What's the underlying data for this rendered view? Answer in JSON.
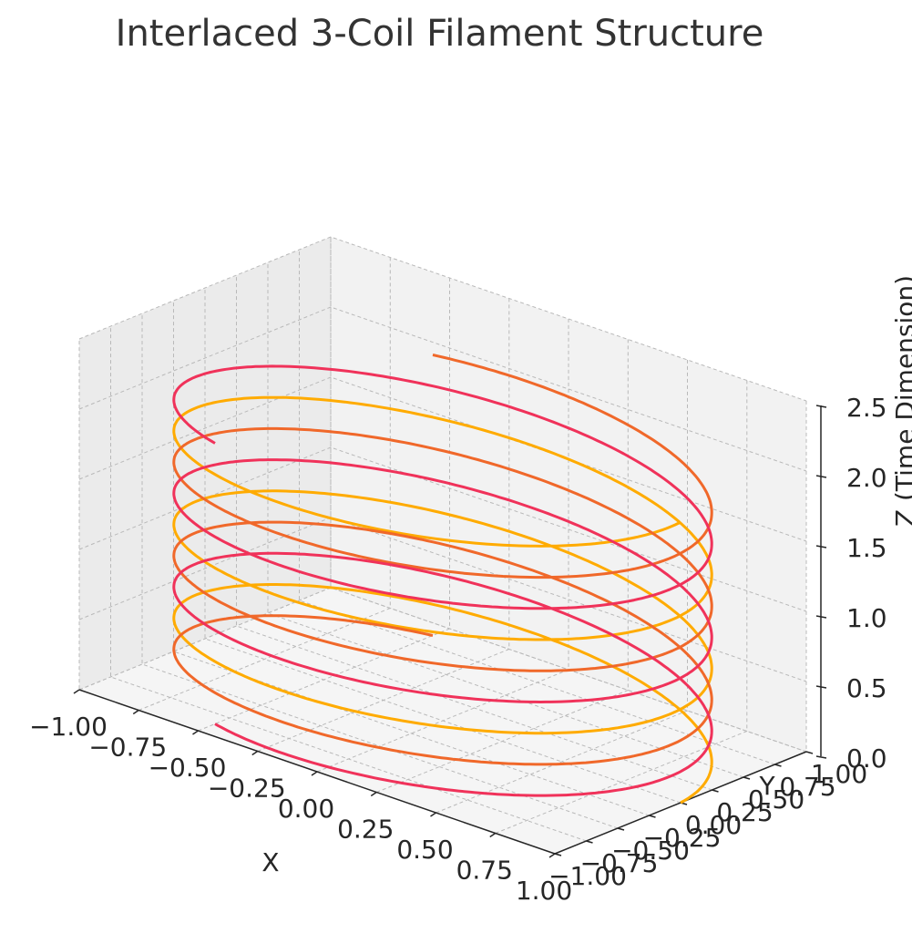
{
  "chart_data": {
    "type": "line",
    "title": "Interlaced 3-Coil Filament Structure",
    "xlabel": "X",
    "ylabel": "Y",
    "zlabel": "Z (Time Dimension)",
    "xlim": [
      -1.0,
      1.0
    ],
    "ylim": [
      -1.0,
      1.0
    ],
    "zlim": [
      0.0,
      2.5
    ],
    "grid": true,
    "x_ticks": [
      "−1.00",
      "−0.75",
      "−0.50",
      "−0.25",
      "0.00",
      "0.25",
      "0.50",
      "0.75",
      "1.00"
    ],
    "y_ticks": [
      "−1.00",
      "−0.75",
      "−0.50",
      "−0.25",
      "0.00",
      "0.25",
      "0.50",
      "0.75",
      "1.00"
    ],
    "z_ticks": [
      "0.0",
      "0.5",
      "1.0",
      "1.5",
      "2.0",
      "2.5"
    ],
    "x_tick_values": [
      -1.0,
      -0.75,
      -0.5,
      -0.25,
      0.0,
      0.25,
      0.5,
      0.75,
      1.0
    ],
    "y_tick_values": [
      -1.0,
      -0.75,
      -0.5,
      -0.25,
      0.0,
      0.25,
      0.5,
      0.75,
      1.0
    ],
    "z_tick_values": [
      0.0,
      0.5,
      1.0,
      1.5,
      2.0,
      2.5
    ],
    "series": [
      {
        "color": "#ffab00",
        "radius": 1.0,
        "z_start": 0.0,
        "z_end": 2.0,
        "phase_deg": 0,
        "turns": 3
      },
      {
        "color": "#f0682a",
        "radius": 1.0,
        "z_start": 0.0,
        "z_end": 2.0,
        "phase_deg": 120,
        "turns": 3
      },
      {
        "color": "#f0325a",
        "radius": 1.0,
        "z_start": 0.0,
        "z_end": 2.0,
        "phase_deg": 240,
        "turns": 3
      }
    ]
  }
}
